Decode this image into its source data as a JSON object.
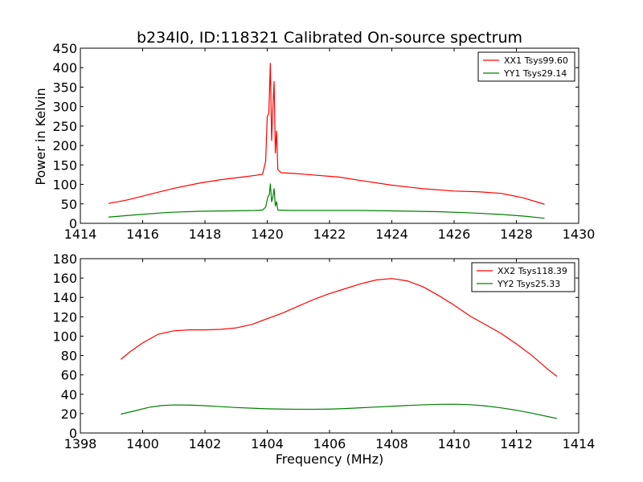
{
  "chart_data": {
    "title": "b234l0, ID:118321 Calibrated On-source spectrum",
    "ylabel": "Power in Kelvin",
    "xlabel": "Frequency (MHz)",
    "panels": [
      {
        "type": "line",
        "xlim": [
          1414,
          1430
        ],
        "ylim": [
          0,
          450
        ],
        "xticks": [
          1414,
          1416,
          1418,
          1420,
          1422,
          1424,
          1426,
          1428,
          1430
        ],
        "yticks": [
          0,
          50,
          100,
          150,
          200,
          250,
          300,
          350,
          400,
          450
        ],
        "legend_position": "top-right",
        "series": [
          {
            "name": "XX1 Tsys99.60",
            "color": "#ff0000",
            "points": [
              [
                1414.9,
                51
              ],
              [
                1415.5,
                60
              ],
              [
                1416.3,
                76
              ],
              [
                1417.0,
                90
              ],
              [
                1417.8,
                103
              ],
              [
                1418.5,
                112
              ],
              [
                1419.2,
                119
              ],
              [
                1419.6,
                123
              ],
              [
                1419.85,
                126
              ],
              [
                1419.95,
                160
              ],
              [
                1420.0,
                275
              ],
              [
                1420.05,
                282
              ],
              [
                1420.1,
                412
              ],
              [
                1420.14,
                212
              ],
              [
                1420.18,
                295
              ],
              [
                1420.22,
                365
              ],
              [
                1420.26,
                180
              ],
              [
                1420.3,
                238
              ],
              [
                1420.34,
                138
              ],
              [
                1420.45,
                130
              ],
              [
                1420.9,
                128
              ],
              [
                1421.5,
                124
              ],
              [
                1422.3,
                119
              ],
              [
                1423.0,
                110
              ],
              [
                1424.0,
                98
              ],
              [
                1425.0,
                89
              ],
              [
                1426.0,
                83
              ],
              [
                1426.8,
                81
              ],
              [
                1427.5,
                77
              ],
              [
                1428.2,
                66
              ],
              [
                1428.9,
                49
              ]
            ]
          },
          {
            "name": "YY1 Tsys29.14",
            "color": "#008000",
            "points": [
              [
                1414.9,
                16
              ],
              [
                1415.8,
                22
              ],
              [
                1416.8,
                28
              ],
              [
                1417.8,
                31
              ],
              [
                1418.8,
                32
              ],
              [
                1419.6,
                33
              ],
              [
                1419.85,
                34
              ],
              [
                1419.95,
                42
              ],
              [
                1420.02,
                68
              ],
              [
                1420.07,
                75
              ],
              [
                1420.1,
                102
              ],
              [
                1420.14,
                55
              ],
              [
                1420.18,
                68
              ],
              [
                1420.22,
                90
              ],
              [
                1420.26,
                44
              ],
              [
                1420.3,
                56
              ],
              [
                1420.34,
                34
              ],
              [
                1420.8,
                33
              ],
              [
                1421.8,
                33
              ],
              [
                1423.0,
                33
              ],
              [
                1424.0,
                32
              ],
              [
                1425.5,
                30
              ],
              [
                1426.5,
                27
              ],
              [
                1427.5,
                23
              ],
              [
                1428.3,
                18
              ],
              [
                1428.9,
                13
              ]
            ]
          }
        ]
      },
      {
        "type": "line",
        "xlim": [
          1398,
          1414
        ],
        "ylim": [
          0,
          180
        ],
        "xticks": [
          1398,
          1400,
          1402,
          1404,
          1406,
          1408,
          1410,
          1412,
          1414
        ],
        "yticks": [
          0,
          20,
          40,
          60,
          80,
          100,
          120,
          140,
          160,
          180
        ],
        "legend_position": "top-right",
        "series": [
          {
            "name": "XX2 Tsys118.39",
            "color": "#ff0000",
            "points": [
              [
                1399.3,
                76
              ],
              [
                1399.6,
                84
              ],
              [
                1400.0,
                93
              ],
              [
                1400.5,
                102
              ],
              [
                1401.0,
                105.5
              ],
              [
                1401.5,
                106.5
              ],
              [
                1402.0,
                106.5
              ],
              [
                1402.5,
                107
              ],
              [
                1403.0,
                108.5
              ],
              [
                1403.5,
                112
              ],
              [
                1404.0,
                118
              ],
              [
                1404.5,
                124
              ],
              [
                1405.0,
                131
              ],
              [
                1405.5,
                138
              ],
              [
                1406.0,
                144
              ],
              [
                1406.5,
                149
              ],
              [
                1407.0,
                154
              ],
              [
                1407.5,
                158
              ],
              [
                1408.0,
                159.5
              ],
              [
                1408.5,
                157
              ],
              [
                1409.0,
                151
              ],
              [
                1409.5,
                142
              ],
              [
                1410.0,
                132
              ],
              [
                1410.5,
                121
              ],
              [
                1411.0,
                112
              ],
              [
                1411.5,
                103
              ],
              [
                1412.0,
                92
              ],
              [
                1412.5,
                80
              ],
              [
                1413.0,
                66
              ],
              [
                1413.3,
                58.5
              ]
            ]
          },
          {
            "name": "YY2 Tsys25.33",
            "color": "#008000",
            "points": [
              [
                1399.3,
                19.5
              ],
              [
                1399.7,
                22.5
              ],
              [
                1400.2,
                26.5
              ],
              [
                1400.6,
                28.3
              ],
              [
                1401.0,
                29
              ],
              [
                1401.5,
                28.8
              ],
              [
                1402.0,
                28.2
              ],
              [
                1402.5,
                27.2
              ],
              [
                1403.0,
                26.3
              ],
              [
                1403.5,
                25.6
              ],
              [
                1404.0,
                25
              ],
              [
                1404.5,
                24.7
              ],
              [
                1405.0,
                24.5
              ],
              [
                1405.5,
                24.5
              ],
              [
                1406.0,
                24.7
              ],
              [
                1406.5,
                25.2
              ],
              [
                1407.0,
                26
              ],
              [
                1407.5,
                26.8
              ],
              [
                1408.0,
                27.6
              ],
              [
                1408.5,
                28.4
              ],
              [
                1409.0,
                29.1
              ],
              [
                1409.5,
                29.6
              ],
              [
                1410.0,
                29.7
              ],
              [
                1410.5,
                29.3
              ],
              [
                1411.0,
                28
              ],
              [
                1411.5,
                26
              ],
              [
                1412.0,
                23.5
              ],
              [
                1412.5,
                20.5
              ],
              [
                1413.0,
                17
              ],
              [
                1413.3,
                15
              ]
            ]
          }
        ]
      }
    ]
  }
}
